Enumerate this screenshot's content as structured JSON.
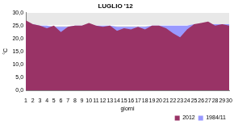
{
  "chart_data": {
    "type": "area",
    "title": "LUGLIO '12",
    "x_label": "giorni",
    "y_label": "°C",
    "categories": [
      "1",
      "2",
      "3",
      "4",
      "5",
      "6",
      "7",
      "8",
      "9",
      "10",
      "11",
      "12",
      "13",
      "14",
      "15",
      "16",
      "17",
      "18",
      "19",
      "20",
      "21",
      "22",
      "23",
      "24",
      "25",
      "26",
      "27",
      "28",
      "29",
      "30"
    ],
    "series": [
      {
        "name": "1984/11",
        "color": "#9999ff",
        "values": [
          26,
          25.5,
          25,
          25,
          24.5,
          24.5,
          24.5,
          25,
          25,
          25.5,
          25,
          25,
          25,
          24.5,
          24.5,
          24.5,
          24.5,
          24.5,
          25,
          25,
          25,
          25,
          25,
          25,
          25.5,
          25.5,
          25.5,
          25.5,
          25.5,
          25.5
        ]
      },
      {
        "name": "2012",
        "color": "#993366",
        "values": [
          27,
          25.5,
          25,
          24,
          25,
          22.5,
          24.5,
          25,
          25,
          26,
          25,
          24.5,
          25,
          23,
          24,
          23.5,
          24.5,
          23.5,
          25,
          25,
          24,
          22,
          20.5,
          23.5,
          25.5,
          26,
          26.5,
          25,
          25.5,
          25
        ]
      }
    ],
    "ylim": [
      0,
      30
    ],
    "yticks": [
      {
        "value": 0,
        "label": "0,0"
      },
      {
        "value": 5,
        "label": "5,0"
      },
      {
        "value": 10,
        "label": "10,0"
      },
      {
        "value": 15,
        "label": "15,0"
      },
      {
        "value": 20,
        "label": "20,0"
      },
      {
        "value": 25,
        "label": "25,0"
      },
      {
        "value": 30,
        "label": "30,0"
      }
    ],
    "grid": true,
    "legend": "bottom-right"
  }
}
